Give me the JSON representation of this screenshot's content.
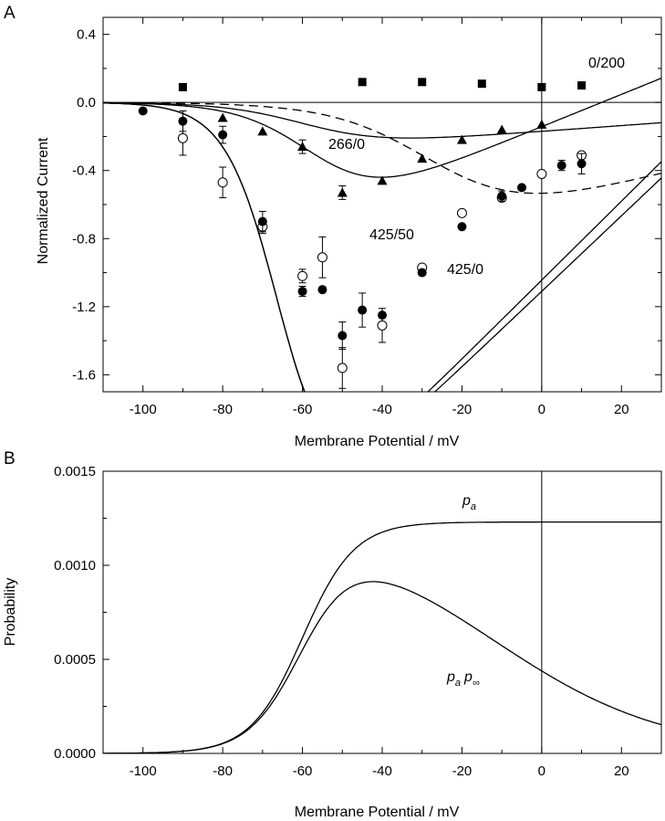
{
  "chart_data": [
    {
      "panel_label": "A",
      "type": "scatter",
      "xlabel": "Membrane Potential / mV",
      "ylabel": "Normalized Current",
      "xlim": [
        -110,
        30
      ],
      "ylim": [
        -1.7,
        0.5
      ],
      "xticks": [
        -100,
        -80,
        -60,
        -40,
        -20,
        0,
        20
      ],
      "xtick_labels": [
        "-100",
        "-80",
        "-60",
        "-40",
        "-20",
        "0",
        "20"
      ],
      "yticks": [
        0.4,
        0.0,
        -0.4,
        -0.8,
        -1.2,
        -1.6
      ],
      "ytick_labels": [
        "0.4",
        "0.0",
        "-0.4",
        "-0.8",
        "-1.2",
        "-1.6"
      ],
      "reference_lines": {
        "x": 0,
        "y": 0
      },
      "series": [
        {
          "name": "0/200",
          "marker": "filled-square",
          "x": [
            -90,
            -45,
            -30,
            -15,
            0,
            10
          ],
          "y": [
            0.09,
            0.12,
            0.12,
            0.11,
            0.09,
            0.1
          ],
          "fit": {
            "vh": -58,
            "k": 10,
            "gmax": 0.17,
            "erev": 100
          },
          "dashed_fit": {
            "vh": -25,
            "k": 12,
            "gmax": 0.6,
            "erev": 100
          }
        },
        {
          "name": "266/0",
          "marker": "filled-triangle",
          "x": [
            -80,
            -70,
            -60,
            -50,
            -40,
            -30,
            -20,
            -10,
            0
          ],
          "y": [
            -0.09,
            -0.17,
            -0.26,
            -0.53,
            -0.46,
            -0.33,
            -0.22,
            -0.16,
            -0.13
          ],
          "yerr": [
            0.0,
            0.0,
            0.04,
            0.04,
            0.0,
            0.0,
            0.0,
            0.0,
            0.0
          ],
          "fit": {
            "vh": -55,
            "k": 9,
            "gmax": 0.95,
            "erev": 15
          }
        },
        {
          "name": "425/50",
          "marker": "open-circle",
          "x": [
            -90,
            -80,
            -70,
            -60,
            -55,
            -50,
            -40,
            -30,
            -20,
            -10,
            0,
            10
          ],
          "y": [
            -0.21,
            -0.47,
            -0.73,
            -1.02,
            -0.91,
            -1.56,
            -1.31,
            -0.97,
            -0.65,
            -0.56,
            -0.42,
            -0.31
          ],
          "yerr": [
            0.1,
            0.09,
            0.04,
            0.04,
            0.12,
            0.12,
            0.1,
            0.0,
            0.0,
            0.0,
            0.0,
            0.0
          ],
          "fit": {
            "vh": -65,
            "k": 6.5,
            "gmax": 2.32,
            "erev": 45
          }
        },
        {
          "name": "425/0",
          "marker": "filled-circle",
          "x": [
            -100,
            -90,
            -80,
            -70,
            -60,
            -55,
            -50,
            -45,
            -40,
            -30,
            -20,
            -10,
            -5,
            5,
            10
          ],
          "y": [
            -0.05,
            -0.11,
            -0.19,
            -0.7,
            -1.11,
            -1.1,
            -1.37,
            -1.22,
            -1.25,
            -1.0,
            -0.73,
            -0.55,
            -0.5,
            -0.37,
            -0.36
          ],
          "yerr": [
            0.0,
            0.06,
            0.05,
            0.06,
            0.03,
            0.0,
            0.08,
            0.1,
            0.0,
            0.0,
            0.0,
            0.03,
            0.0,
            0.03,
            0.06
          ],
          "fit": {
            "vh": -65,
            "k": 6.5,
            "gmax": 2.22,
            "erev": 50
          }
        }
      ]
    },
    {
      "panel_label": "B",
      "type": "line",
      "xlabel": "Membrane Potential / mV",
      "ylabel": "Probability",
      "xlim": [
        -110,
        30
      ],
      "ylim": [
        0,
        0.0015
      ],
      "xticks": [
        -100,
        -80,
        -60,
        -40,
        -20,
        0,
        20
      ],
      "xtick_labels": [
        "-100",
        "-80",
        "-60",
        "-40",
        "-20",
        "0",
        "20"
      ],
      "yticks": [
        0.0,
        0.0005,
        0.001,
        0.0015
      ],
      "ytick_labels": [
        "0.0000",
        "0.0005",
        "0.0010",
        "0.0015"
      ],
      "reference_lines": {
        "x": 0
      },
      "series": [
        {
          "name": "pa",
          "label_base": "p",
          "label_sub": "a",
          "label_sub2": "",
          "pmax": 0.00123,
          "vh": -60,
          "k": 6.5,
          "vi": null,
          "ki": null
        },
        {
          "name": "pa p∞",
          "label_base": "p",
          "label_sub": "a",
          "label_sub2": "∞",
          "pmax": 0.00123,
          "vh": -60,
          "k": 6.5,
          "vi": -13,
          "ki": 22
        }
      ]
    }
  ]
}
